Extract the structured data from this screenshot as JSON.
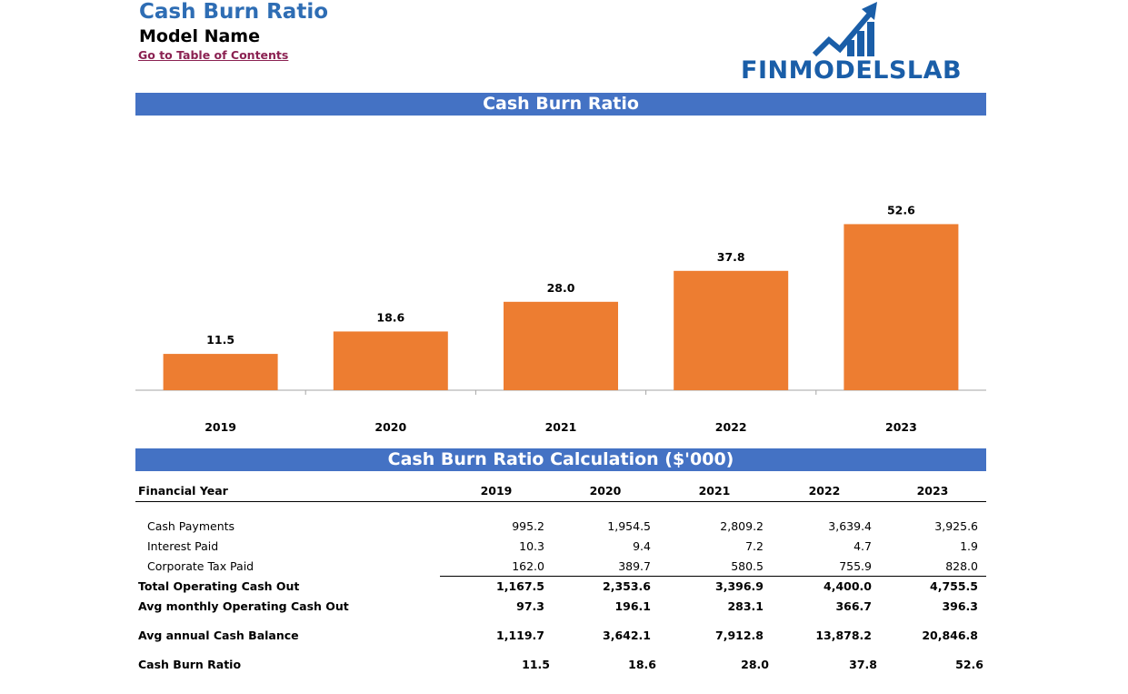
{
  "header": {
    "title": "Cash Burn Ratio",
    "model_name": "Model Name",
    "toc_link": "Go to Table of Contents",
    "logo_text": "FINMODELSLAB"
  },
  "chart_banner": "Cash Burn Ratio",
  "table_banner": "Cash Burn Ratio Calculation ($'000)",
  "chart_data": {
    "type": "bar",
    "title": "Cash Burn Ratio",
    "categories": [
      "2019",
      "2020",
      "2021",
      "2022",
      "2023"
    ],
    "values": [
      11.5,
      18.6,
      28.0,
      37.8,
      52.6
    ],
    "data_labels": [
      "11.5",
      "18.6",
      "28.0",
      "37.8",
      "52.6"
    ],
    "xlabel": "",
    "ylabel": "",
    "ylim": [
      0,
      60
    ],
    "grid": false,
    "bar_color": "#ed7d31"
  },
  "table": {
    "header_label": "Financial Year",
    "years": [
      "2019",
      "2020",
      "2021",
      "2022",
      "2023"
    ],
    "rows": [
      {
        "label": "Cash Payments",
        "values": [
          "995.2",
          "1,954.5",
          "2,809.2",
          "3,639.4",
          "3,925.6"
        ],
        "bold": false,
        "indent": true
      },
      {
        "label": "Interest Paid",
        "values": [
          "10.3",
          "9.4",
          "7.2",
          "4.7",
          "1.9"
        ],
        "bold": false,
        "indent": true
      },
      {
        "label": "Corporate Tax Paid",
        "values": [
          "162.0",
          "389.7",
          "580.5",
          "755.9",
          "828.0"
        ],
        "bold": false,
        "indent": true
      },
      {
        "label": "Total Operating Cash Out",
        "values": [
          "1,167.5",
          "2,353.6",
          "3,396.9",
          "4,400.0",
          "4,755.5"
        ],
        "bold": true,
        "indent": false
      },
      {
        "label": "Avg monthly Operating Cash Out",
        "values": [
          "97.3",
          "196.1",
          "283.1",
          "366.7",
          "396.3"
        ],
        "bold": true,
        "indent": false
      },
      {
        "label": "Avg annual Cash Balance",
        "values": [
          "1,119.7",
          "3,642.1",
          "7,912.8",
          "13,878.2",
          "20,846.8"
        ],
        "bold": true,
        "indent": false
      },
      {
        "label": "Cash Burn Ratio",
        "values": [
          "11.5",
          "18.6",
          "28.0",
          "37.8",
          "52.6"
        ],
        "bold": true,
        "indent": false
      }
    ]
  },
  "colors": {
    "title": "#2e6db4",
    "banner": "#4472c4",
    "bar": "#ed7d31",
    "link": "#8b2252"
  }
}
